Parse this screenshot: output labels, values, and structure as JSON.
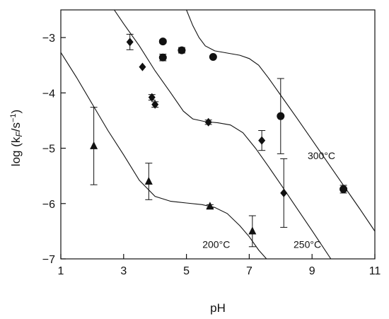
{
  "chart_data": {
    "type": "scatter",
    "xlabel": "pH",
    "ylabel": "log (k",
    "ylabel_sub": "F",
    "ylabel_unit": "/s",
    "ylabel_sup": "−1",
    "ylabel_close": ")",
    "xlim": [
      1,
      11
    ],
    "ylim": [
      -7,
      -2.5
    ],
    "xticks": [
      1,
      3,
      5,
      7,
      9,
      11
    ],
    "yticks": [
      -3,
      -4,
      -5,
      -6,
      -7
    ],
    "ytick_labels": [
      "−3",
      "−4",
      "−5",
      "−6",
      "−7"
    ],
    "grid": false,
    "series": [
      {
        "name": "300°C",
        "marker": "circle",
        "points": [
          {
            "x": 4.25,
            "y": -3.07,
            "err": 0.03
          },
          {
            "x": 4.25,
            "y": -3.36,
            "err": 0.06
          },
          {
            "x": 4.85,
            "y": -3.23,
            "err": 0.05
          },
          {
            "x": 5.85,
            "y": -3.35,
            "err": 0.02
          },
          {
            "x": 8.0,
            "y": -4.42,
            "err": 0.68
          },
          {
            "x": 10.0,
            "y": -5.74,
            "err": 0.07
          }
        ]
      },
      {
        "name": "250°C",
        "marker": "diamond",
        "points": [
          {
            "x": 3.2,
            "y": -3.08,
            "err": 0.14
          },
          {
            "x": 3.6,
            "y": -3.53,
            "err": 0.0
          },
          {
            "x": 3.9,
            "y": -4.08,
            "err": 0.05
          },
          {
            "x": 4.0,
            "y": -4.21,
            "err": 0.05
          },
          {
            "x": 5.7,
            "y": -4.53,
            "err": 0.04
          },
          {
            "x": 7.4,
            "y": -4.86,
            "err": 0.18
          },
          {
            "x": 8.1,
            "y": -5.81,
            "err": 0.62
          }
        ]
      },
      {
        "name": "200°C",
        "marker": "triangle",
        "points": [
          {
            "x": 2.05,
            "y": -4.96,
            "err": 0.7
          },
          {
            "x": 3.8,
            "y": -5.6,
            "err": 0.33
          },
          {
            "x": 5.75,
            "y": -6.05,
            "err": 0.03
          },
          {
            "x": 7.1,
            "y": -6.5,
            "err": 0.28
          }
        ]
      }
    ],
    "curves": [
      {
        "label": "300°C",
        "points": [
          [
            5.0,
            -2.5
          ],
          [
            5.2,
            -2.78
          ],
          [
            5.4,
            -3.0
          ],
          [
            5.6,
            -3.15
          ],
          [
            5.9,
            -3.24
          ],
          [
            6.3,
            -3.28
          ],
          [
            6.7,
            -3.32
          ],
          [
            7.0,
            -3.38
          ],
          [
            7.3,
            -3.5
          ],
          [
            7.6,
            -3.72
          ],
          [
            8.0,
            -4.04
          ],
          [
            8.5,
            -4.44
          ],
          [
            9.0,
            -4.85
          ],
          [
            9.5,
            -5.26
          ],
          [
            10.0,
            -5.67
          ],
          [
            10.5,
            -6.08
          ],
          [
            11.0,
            -6.5
          ]
        ]
      },
      {
        "label": "250°C",
        "points": [
          [
            2.7,
            -2.5
          ],
          [
            3.0,
            -2.75
          ],
          [
            3.5,
            -3.15
          ],
          [
            4.0,
            -3.6
          ],
          [
            4.5,
            -4.0
          ],
          [
            4.9,
            -4.33
          ],
          [
            5.2,
            -4.47
          ],
          [
            5.6,
            -4.52
          ],
          [
            6.0,
            -4.54
          ],
          [
            6.4,
            -4.58
          ],
          [
            6.8,
            -4.72
          ],
          [
            7.2,
            -5.0
          ],
          [
            7.6,
            -5.32
          ],
          [
            8.0,
            -5.65
          ],
          [
            8.5,
            -6.07
          ],
          [
            9.0,
            -6.49
          ],
          [
            9.6,
            -7.0
          ]
        ]
      },
      {
        "label": "200°C",
        "points": [
          [
            1.0,
            -3.27
          ],
          [
            1.5,
            -3.72
          ],
          [
            2.0,
            -4.2
          ],
          [
            2.5,
            -4.68
          ],
          [
            3.0,
            -5.12
          ],
          [
            3.5,
            -5.58
          ],
          [
            4.0,
            -5.87
          ],
          [
            4.5,
            -5.96
          ],
          [
            5.0,
            -5.99
          ],
          [
            5.5,
            -6.02
          ],
          [
            5.9,
            -6.07
          ],
          [
            6.3,
            -6.18
          ],
          [
            6.7,
            -6.4
          ],
          [
            7.0,
            -6.6
          ],
          [
            7.3,
            -6.84
          ],
          [
            7.55,
            -7.0
          ]
        ]
      }
    ],
    "curve_labels": [
      {
        "text": "300°C",
        "x": 9.3,
        "y": -5.2
      },
      {
        "text": "250°C",
        "x": 8.85,
        "y": -6.8
      },
      {
        "text": "200°C",
        "x": 5.95,
        "y": -6.8
      }
    ]
  }
}
